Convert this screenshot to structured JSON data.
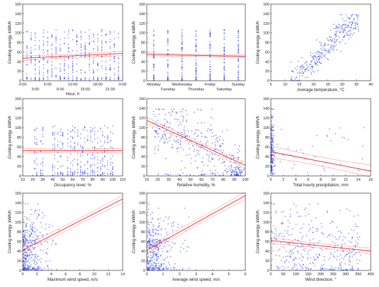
{
  "colors": {
    "points": "#1f2fe0",
    "fit": "#e8201c"
  },
  "chart_data": [
    {
      "type": "scatter",
      "ylabel": "Cooling energy, kWh/h",
      "xlabel": "Hour, h",
      "ylim": [
        0,
        160
      ],
      "yticks": [
        0,
        20,
        40,
        60,
        80,
        100,
        120,
        140,
        160
      ],
      "xlim": [
        0,
        24
      ],
      "xtick_labels": [
        {
          "x": 0,
          "label": "0:00",
          "row": 0
        },
        {
          "x": 3,
          "label": "3:00",
          "row": 1
        },
        {
          "x": 6,
          "label": "6:00",
          "row": 0
        },
        {
          "x": 9,
          "label": "9:00",
          "row": 1
        },
        {
          "x": 12,
          "label": "12:00",
          "row": 0
        },
        {
          "x": 15,
          "label": "15:00",
          "row": 1
        },
        {
          "x": 18,
          "label": "18:00",
          "row": 0
        },
        {
          "x": 21,
          "label": "21:00",
          "row": 1
        },
        {
          "x": 24,
          "label": "0:00",
          "row": 0
        }
      ],
      "gen": {
        "kind": "discrete",
        "levels": [
          1,
          2,
          3,
          4,
          5,
          6,
          7,
          8,
          9,
          10,
          11,
          12,
          13,
          14,
          15,
          16,
          17,
          18,
          19,
          20,
          21,
          22,
          23
        ],
        "mean": 55,
        "sd": 40,
        "n": 20
      },
      "fit": {
        "y0": 47,
        "y1": 57,
        "ci": 3
      }
    },
    {
      "type": "scatter",
      "ylabel": "Cooling energy, kWh/h",
      "xlabel": "",
      "ylim": [
        0,
        160
      ],
      "yticks": [
        0,
        20,
        40,
        60,
        80,
        100,
        120,
        140,
        160
      ],
      "xlim": [
        0.5,
        7.5
      ],
      "xtick_labels": [
        {
          "x": 1,
          "label": "Monday",
          "row": 0
        },
        {
          "x": 2,
          "label": "Tuesday",
          "row": 1
        },
        {
          "x": 3,
          "label": "Wednesday",
          "row": 0
        },
        {
          "x": 4,
          "label": "Thursday",
          "row": 1
        },
        {
          "x": 5,
          "label": "Friday",
          "row": 0
        },
        {
          "x": 6,
          "label": "Saturday",
          "row": 1
        },
        {
          "x": 7,
          "label": "Sunday",
          "row": 0
        }
      ],
      "gen": {
        "kind": "discrete",
        "levels": [
          1,
          2,
          3,
          4,
          5,
          6,
          7
        ],
        "mean": 55,
        "sd": 40,
        "n": 45
      },
      "fit": {
        "y0": 55,
        "y1": 51,
        "ci": 2
      }
    },
    {
      "type": "scatter",
      "ylabel": "Cooling energy, kWh/h",
      "xlabel": "Average temperature, °C",
      "ylim": [
        0,
        160
      ],
      "yticks": [
        0,
        20,
        40,
        60,
        80,
        100,
        120,
        140,
        160
      ],
      "xlim": [
        5,
        40
      ],
      "xticks": [
        5,
        10,
        15,
        20,
        25,
        30,
        35,
        40
      ],
      "gen": {
        "kind": "curve",
        "xmin": 12,
        "xmax": 36,
        "a": 0.08,
        "k": 4.4,
        "cap": 130,
        "sd": 14,
        "n": 320
      },
      "fit": null
    },
    {
      "type": "scatter",
      "ylabel": "Cooling energy, kWh/h",
      "xlabel": "Occupancy level, %",
      "ylim": [
        0,
        160
      ],
      "yticks": [
        0,
        20,
        40,
        60,
        80,
        100,
        120,
        140,
        160
      ],
      "xlim": [
        10,
        110
      ],
      "xticks": [
        10,
        20,
        30,
        40,
        50,
        60,
        70,
        80,
        90,
        100,
        110
      ],
      "gen": {
        "kind": "discrete",
        "levels": [
          22,
          24,
          28,
          30,
          40,
          42,
          45,
          48,
          50,
          55,
          58,
          60,
          62,
          65,
          68,
          70,
          72,
          75,
          78,
          80,
          82,
          85,
          88,
          90,
          92,
          95,
          98,
          100
        ],
        "mean": 52,
        "sd": 40,
        "n": 14
      },
      "fit": {
        "y0": 52,
        "y1": 52,
        "ci": 3
      }
    },
    {
      "type": "scatter",
      "ylabel": "Cooling energy, kWh/h",
      "xlabel": "Relative humidity, %",
      "ylim": [
        0,
        160
      ],
      "yticks": [
        0,
        20,
        40,
        60,
        80,
        100,
        120,
        140,
        160
      ],
      "xlim": [
        10,
        100
      ],
      "xticks": [
        10,
        20,
        30,
        40,
        50,
        60,
        70,
        80,
        90,
        100
      ],
      "gen": {
        "kind": "linear",
        "xmin": 15,
        "xmax": 95,
        "y0": 115,
        "y1": 22,
        "sd": 32,
        "n": 360,
        "cluster": {
          "x": 93,
          "sx": 3,
          "y": 8,
          "sy": 8,
          "n": 60
        }
      },
      "fit": {
        "y0": 115,
        "y1": 22,
        "ci": 4
      }
    },
    {
      "type": "scatter",
      "ylabel": "Cooling energy, kWh/h",
      "xlabel": "Total hourly precipitation, mm",
      "ylim": [
        0,
        160
      ],
      "yticks": [
        0,
        20,
        40,
        60,
        80,
        100,
        120,
        140,
        160
      ],
      "xlim": [
        0,
        16
      ],
      "xticks": [
        0,
        2,
        4,
        6,
        8,
        10,
        12,
        14,
        16
      ],
      "gen": {
        "kind": "zeroheavy",
        "xmax": 15,
        "mean": 50,
        "sd": 40,
        "n": 200
      },
      "fit": {
        "y0": 50,
        "y1": 10,
        "ci": 8
      }
    },
    {
      "type": "scatter",
      "ylabel": "Cooling energy, kWh/h",
      "xlabel": "Maximum wind speed, m/s",
      "ylim": [
        0,
        160
      ],
      "yticks": [
        0,
        20,
        40,
        60,
        80,
        100,
        120,
        140,
        160
      ],
      "xlim": [
        0,
        14
      ],
      "xticks": [
        0,
        2,
        4,
        6,
        8,
        10,
        12,
        14
      ],
      "gen": {
        "kind": "skew",
        "xmin": 0,
        "xmax": 9,
        "scale": 2.2,
        "y0": 40,
        "y1": 90,
        "sd": 36,
        "n": 360
      },
      "fit": {
        "y0": 42,
        "y1": 148,
        "ci": 5
      }
    },
    {
      "type": "scatter",
      "ylabel": "Cooling energy, kWh/h",
      "xlabel": "Average wind speed, m/s",
      "ylim": [
        0,
        160
      ],
      "yticks": [
        0,
        20,
        40,
        60,
        80,
        100,
        120,
        140,
        160
      ],
      "xlim": [
        0,
        6
      ],
      "xticks": [
        0,
        1,
        2,
        3,
        4,
        5,
        6
      ],
      "gen": {
        "kind": "skew",
        "xmin": 0,
        "xmax": 4.5,
        "scale": 1.1,
        "y0": 40,
        "y1": 85,
        "sd": 36,
        "n": 360
      },
      "fit": {
        "y0": 42,
        "y1": 155,
        "ci": 5
      }
    },
    {
      "type": "scatter",
      "ylabel": "Cooling energy, kWh/h",
      "xlabel": "Wind direction, °",
      "ylim": [
        0,
        160
      ],
      "yticks": [
        0,
        20,
        40,
        60,
        80,
        100,
        120,
        140,
        160
      ],
      "xlim": [
        0,
        400
      ],
      "xticks": [
        0,
        50,
        100,
        150,
        200,
        250,
        300,
        350,
        400
      ],
      "gen": {
        "kind": "linear",
        "xmin": 0,
        "xmax": 360,
        "y0": 60,
        "y1": 42,
        "sd": 38,
        "n": 360
      },
      "fit": {
        "y0": 62,
        "y1": 40,
        "ci": 4
      }
    }
  ]
}
